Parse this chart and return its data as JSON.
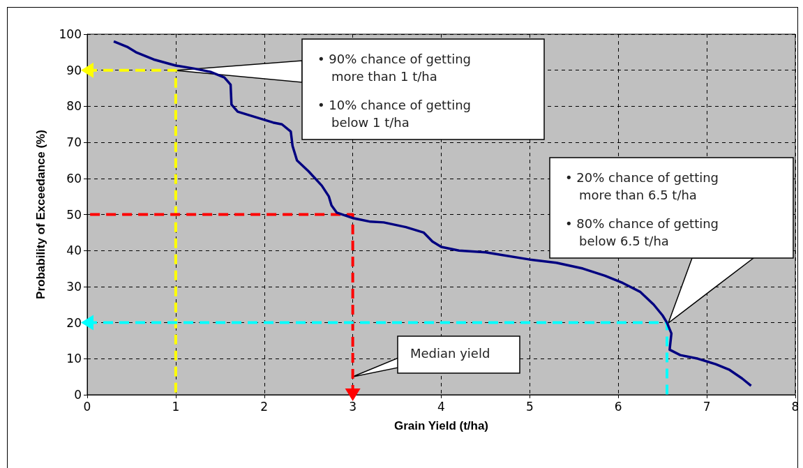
{
  "chart_data": {
    "type": "line",
    "xlabel": "Grain Yield (t/ha)",
    "ylabel": "Probability of Exceedance (%)",
    "xlim": [
      0,
      8
    ],
    "xticks": [
      0,
      1,
      2,
      3,
      4,
      5,
      6,
      7,
      8
    ],
    "ylim": [
      0,
      100
    ],
    "yticks": [
      0,
      10,
      20,
      30,
      40,
      50,
      60,
      70,
      80,
      90,
      100
    ],
    "grid": true,
    "marker": "none",
    "series": [
      {
        "color": "#000080",
        "line_style": "solid",
        "x": [
          0.3,
          0.45,
          0.55,
          0.75,
          1.0,
          1.2,
          1.4,
          1.55,
          1.62,
          1.63,
          1.7,
          1.9,
          2.1,
          2.2,
          2.3,
          2.32,
          2.37,
          2.5,
          2.65,
          2.73,
          2.76,
          2.82,
          3.0,
          3.2,
          3.35,
          3.6,
          3.8,
          3.9,
          4.0,
          4.2,
          4.5,
          5.0,
          5.3,
          5.6,
          5.85,
          6.05,
          6.25,
          6.4,
          6.5,
          6.55,
          6.6,
          6.58,
          6.7,
          6.9,
          7.1,
          7.25,
          7.4,
          7.5
        ],
        "values": [
          98,
          96.5,
          95,
          93,
          91.3,
          90.5,
          89.5,
          88,
          86,
          80.5,
          78.5,
          77,
          75.5,
          75,
          73,
          69,
          65,
          62,
          58,
          55,
          52.5,
          50.5,
          49,
          48,
          47.8,
          46.5,
          45,
          42.5,
          41,
          40,
          39.5,
          37.5,
          36.6,
          35,
          33,
          31,
          28.5,
          25,
          22,
          20,
          17,
          12.5,
          11,
          10,
          8.5,
          7,
          4.5,
          2.5
        ]
      },
      {
        "color": "#ffff00",
        "line_style": "dashed",
        "x": [
          0,
          1,
          1
        ],
        "values": [
          90,
          90,
          0.5
        ]
      },
      {
        "color": "#ff0000",
        "line_style": "dashed",
        "x": [
          3,
          3,
          0
        ],
        "values": [
          0,
          50,
          50
        ]
      },
      {
        "color": "#00ffff",
        "line_style": "dashed",
        "x": [
          0,
          6.55,
          6.55
        ],
        "values": [
          20,
          20,
          0
        ]
      }
    ],
    "annotations": [
      "• 90% chance of getting more than 1 t/ha",
      "• 10% chance of getting below 1 t/ha",
      "• 20% chance of getting more than 6.5 t/ha",
      "• 80% chance of getting below 6.5 t/ha",
      {
        "text": "Median yield",
        "x": 3,
        "y": 5
      }
    ]
  }
}
